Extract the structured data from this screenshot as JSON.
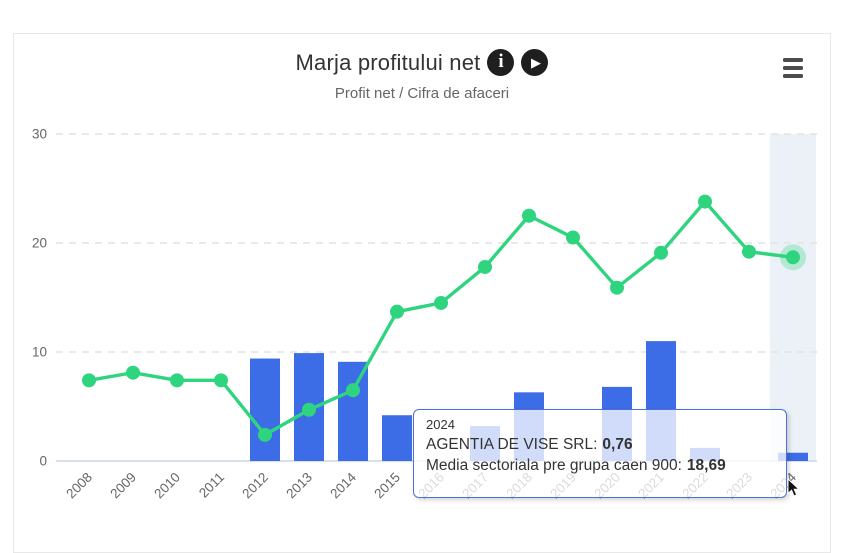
{
  "header": {
    "title": "Marja profitului net",
    "subtitle": "Profit net / Cifra de afaceri",
    "info_glyph": "i",
    "play_glyph": "▶"
  },
  "tooltip": {
    "year": "2024",
    "company_label": "AGENTIA DE VISE SRL:",
    "company_value": "0,76",
    "sector_label": "Media sectoriala pre grupa caen 900:",
    "sector_value": "18,69"
  },
  "colors": {
    "bar": "#3d6de6",
    "line": "#2ed57e",
    "grid": "#e2e2e2",
    "axis_line": "#ccd6eb",
    "tick_text": "#666666",
    "hover_band": "#ecf1f8",
    "tooltip_border": "#4a72d9"
  },
  "chart_data": {
    "type": "combo",
    "title": "Marja profitului net",
    "subtitle": "Profit net / Cifra de afaceri",
    "categories": [
      "2008",
      "2009",
      "2010",
      "2011",
      "2012",
      "2013",
      "2014",
      "2015",
      "2016",
      "2017",
      "2018",
      "2019",
      "2020",
      "2021",
      "2022",
      "2023",
      "2024"
    ],
    "series": [
      {
        "name": "AGENTIA DE VISE SRL",
        "type": "bar",
        "values": [
          null,
          null,
          null,
          null,
          9.4,
          9.9,
          9.1,
          4.2,
          null,
          3.2,
          6.3,
          null,
          6.8,
          11,
          1.2,
          null,
          0.76
        ]
      },
      {
        "name": "Media sectoriala pre grupa caen 900",
        "type": "line",
        "values": [
          7.4,
          8.1,
          7.4,
          7.4,
          2.4,
          4.7,
          6.5,
          13.7,
          14.5,
          17.8,
          22.5,
          20.5,
          15.9,
          19.1,
          23.8,
          19.2,
          18.69
        ]
      }
    ],
    "ylim": [
      0,
      30
    ],
    "yticks": [
      0,
      10,
      20,
      30
    ],
    "xlabel": "",
    "ylabel": "",
    "grid": "horizontal-dashed",
    "legend": "none",
    "highlighted_category": "2024",
    "x_label_rotation": -45
  }
}
